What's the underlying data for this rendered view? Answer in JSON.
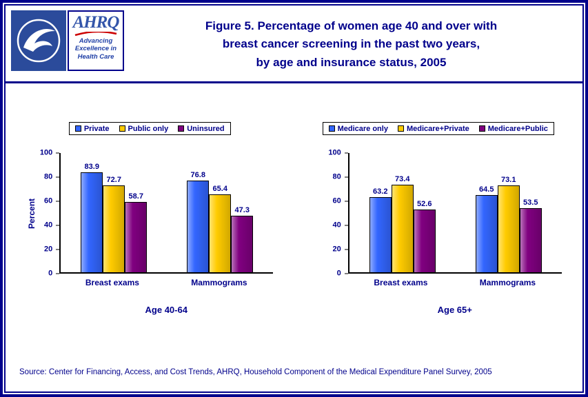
{
  "page": {
    "title_lines": [
      "Figure 5. Percentage of women age 40 and over with",
      "breast cancer screening in the past two years,",
      "by age and insurance status, 2005"
    ],
    "source": "Source: Center for Financing, Access, and Cost Trends, AHRQ, Household Component of the Medical Expenditure Panel Survey, 2005"
  },
  "logos": {
    "hhs_icon": "hhs-seal-icon",
    "ahrq_text": "AHRQ",
    "ahrq_tagline": [
      "Advancing",
      "Excellence in",
      "Health Care"
    ]
  },
  "colors": {
    "navy_text": "#00008B",
    "frame": "#00008B",
    "series_blue": "#3366FF",
    "series_gold": "#FFCC00",
    "series_purple": "#800080",
    "accent_red": "#CC0000"
  },
  "chart_data": [
    {
      "type": "bar",
      "title": "Age 40-64",
      "xlabel": "",
      "ylabel": "Percent",
      "ylim": [
        0,
        100
      ],
      "yticks": [
        0,
        20,
        40,
        60,
        80,
        100
      ],
      "grid": false,
      "legend_position": "top",
      "categories": [
        "Breast exams",
        "Mammograms"
      ],
      "series": [
        {
          "name": "Private",
          "color": "#3366FF",
          "values": [
            83.9,
            76.8
          ]
        },
        {
          "name": "Public only",
          "color": "#FFCC00",
          "values": [
            72.7,
            65.4
          ]
        },
        {
          "name": "Uninsured",
          "color": "#800080",
          "values": [
            58.7,
            47.3
          ]
        }
      ]
    },
    {
      "type": "bar",
      "title": "Age 65+",
      "xlabel": "",
      "ylabel": "",
      "ylim": [
        0,
        100
      ],
      "yticks": [
        0,
        20,
        40,
        60,
        80,
        100
      ],
      "grid": false,
      "legend_position": "top",
      "categories": [
        "Breast exams",
        "Mammograms"
      ],
      "series": [
        {
          "name": "Medicare only",
          "color": "#3366FF",
          "values": [
            63.2,
            64.5
          ]
        },
        {
          "name": "Medicare+Private",
          "color": "#FFCC00",
          "values": [
            73.4,
            73.1
          ]
        },
        {
          "name": "Medicare+Public",
          "color": "#800080",
          "values": [
            52.6,
            53.5
          ]
        }
      ]
    }
  ]
}
